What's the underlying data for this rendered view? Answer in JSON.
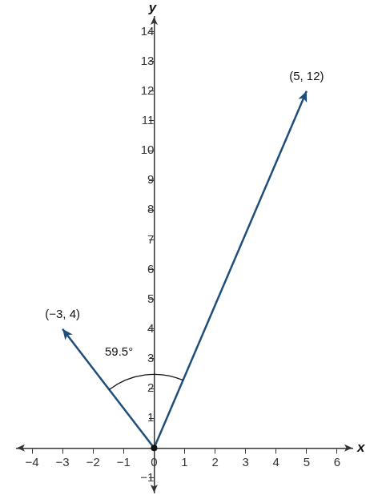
{
  "chart_data": {
    "type": "line",
    "xlabel": "x",
    "ylabel": "y",
    "series": [
      {
        "x": [
          0,
          -3
        ],
        "values": [
          0,
          4
        ],
        "color": "#1f4e7a",
        "marker": "arrow"
      },
      {
        "x": [
          0,
          5
        ],
        "values": [
          0,
          12
        ],
        "color": "#1f4e7a",
        "marker": "arrow"
      }
    ],
    "xlim": [
      -4.5,
      6.5
    ],
    "xticks": [
      {
        "value": -4,
        "label": "−4"
      },
      {
        "value": -3,
        "label": "−3"
      },
      {
        "value": -2,
        "label": "−2"
      },
      {
        "value": -1,
        "label": "−1"
      },
      0,
      1,
      2,
      3,
      4,
      5,
      6
    ],
    "ylim": [
      -1.5,
      14.5
    ],
    "yticks": [
      {
        "value": -1,
        "label": "−1"
      },
      1,
      2,
      3,
      4,
      5,
      6,
      7,
      8,
      9,
      10,
      11,
      12,
      13,
      14
    ],
    "grid": false,
    "annotations": [
      {
        "text": "(−3, 4)",
        "x": -3,
        "y": 4
      },
      {
        "text": "(5, 12)",
        "x": 5,
        "y": 12
      },
      {
        "text": "59.5°",
        "x": -1.15,
        "y": 2.75
      }
    ]
  }
}
